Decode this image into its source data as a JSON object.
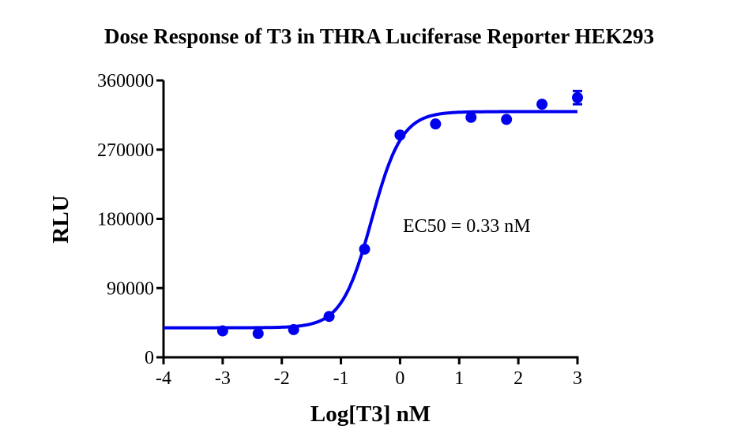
{
  "chart_data": {
    "type": "scatter",
    "title": "Dose Response of T3 in THRA Luciferase Reporter HEK293",
    "xlabel": "Log[T3] nM",
    "ylabel": "RLU",
    "xlim": [
      -4,
      3
    ],
    "ylim": [
      0,
      360000
    ],
    "xticks": [
      "-4",
      "-3",
      "-2",
      "-1",
      "0",
      "1",
      "2",
      "3"
    ],
    "yticks": [
      "0",
      "90000",
      "180000",
      "270000",
      "360000"
    ],
    "grid": false,
    "annotation": "EC50 = 0.33 nM",
    "color": "#0000ee",
    "points": {
      "x": [
        -3,
        -2.4,
        -1.8,
        -1.2,
        -0.6,
        0,
        0.6,
        1.2,
        1.8,
        2.4,
        3
      ],
      "y": [
        34300,
        30900,
        36000,
        53100,
        140600,
        289000,
        303400,
        312000,
        309300,
        329100,
        337700
      ],
      "error": [
        0,
        0,
        0,
        0,
        0,
        0,
        0,
        0,
        0,
        0,
        8600
      ]
    },
    "fit": {
      "model": "sigmoidal dose-response",
      "bottom": 38400,
      "top": 319500,
      "logEC50": -0.48,
      "hill": 1.7
    }
  }
}
